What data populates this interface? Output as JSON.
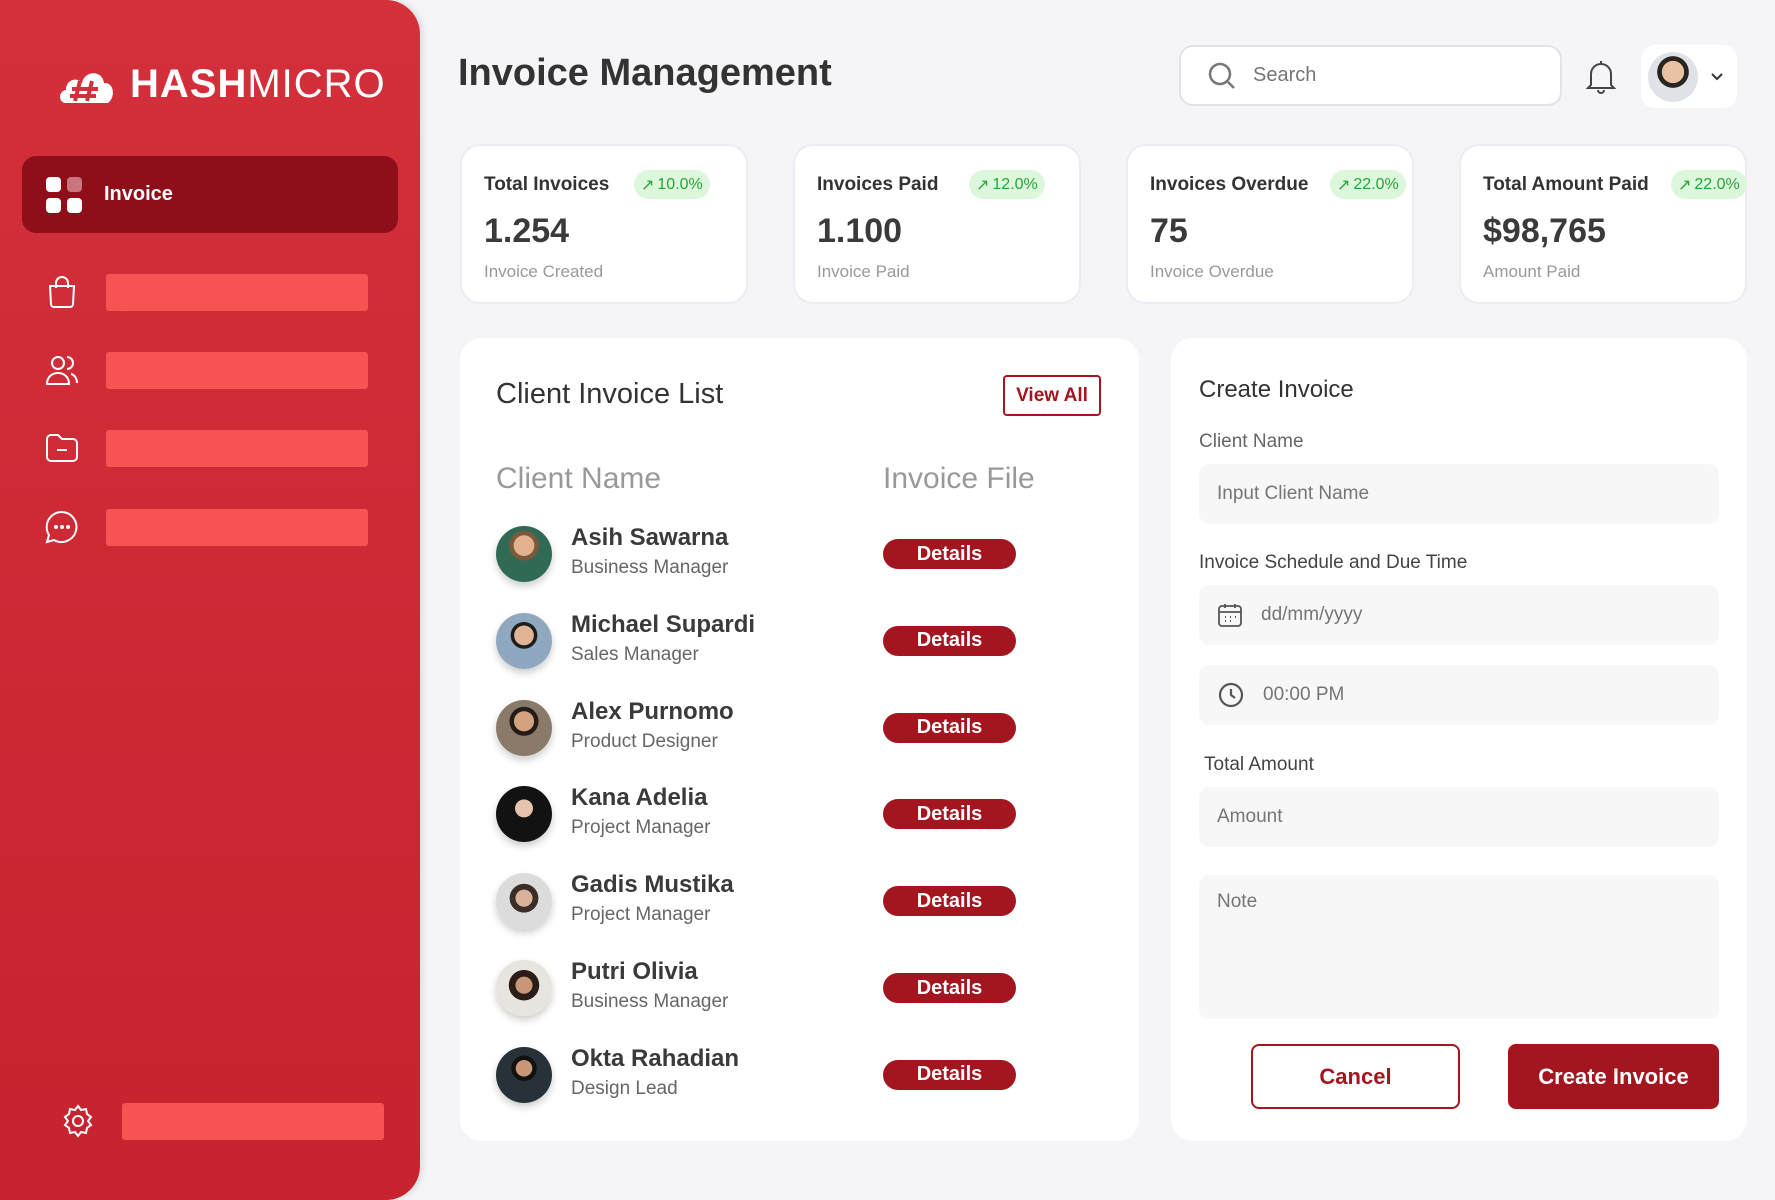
{
  "brand": {
    "name_bold": "HASH",
    "name_light": "MICRO"
  },
  "sidebar": {
    "active_label": "Invoice",
    "items": [
      "shopping-bag-icon",
      "users-icon",
      "folder-icon",
      "chat-icon"
    ],
    "settings_icon": "gear-icon"
  },
  "header": {
    "title": "Invoice Management",
    "search_placeholder": "Search"
  },
  "stats": [
    {
      "title": "Total Invoices",
      "change": "10.0%",
      "value": "1.254",
      "subtitle": "Invoice Created"
    },
    {
      "title": "Invoices Paid",
      "change": "12.0%",
      "value": "1.100",
      "subtitle": "Invoice Paid"
    },
    {
      "title": "Invoices Overdue",
      "change": "22.0%",
      "value": "75",
      "subtitle": "Invoice Overdue"
    },
    {
      "title": "Total Amount Paid",
      "change": "22.0%",
      "value": "$98,765",
      "subtitle": "Amount Paid"
    }
  ],
  "client_list": {
    "title": "Client Invoice List",
    "view_all": "View All",
    "col_name": "Client Name",
    "col_file": "Invoice File",
    "rows": [
      {
        "name": "Asih Sawarna",
        "role": "Business Manager",
        "action": "Details"
      },
      {
        "name": "Michael Supardi",
        "role": "Sales Manager",
        "action": "Details"
      },
      {
        "name": "Alex Purnomo",
        "role": "Product Designer",
        "action": "Details"
      },
      {
        "name": "Kana Adelia",
        "role": "Project Manager",
        "action": "Details"
      },
      {
        "name": "Gadis Mustika",
        "role": "Project Manager",
        "action": "Details"
      },
      {
        "name": "Putri Olivia",
        "role": "Business Manager",
        "action": "Details"
      },
      {
        "name": "Okta Rahadian",
        "role": "Design Lead",
        "action": "Details"
      }
    ]
  },
  "form": {
    "title": "Create Invoice",
    "client_label": "Client Name",
    "client_placeholder": "Input Client Name",
    "schedule_label": "Invoice Schedule and Due Time",
    "date_placeholder": "dd/mm/yyyy",
    "time_placeholder": "00:00 PM",
    "amount_label": "Total Amount",
    "amount_placeholder": "Amount",
    "note_placeholder": "Note",
    "cancel": "Cancel",
    "create": "Create Invoice"
  },
  "colors": {
    "sidebar": "#d3303c",
    "active": "#8e0f1a",
    "accent": "#a3161f",
    "badge_bg": "#dcf7dc",
    "badge_text": "#28a33a"
  }
}
